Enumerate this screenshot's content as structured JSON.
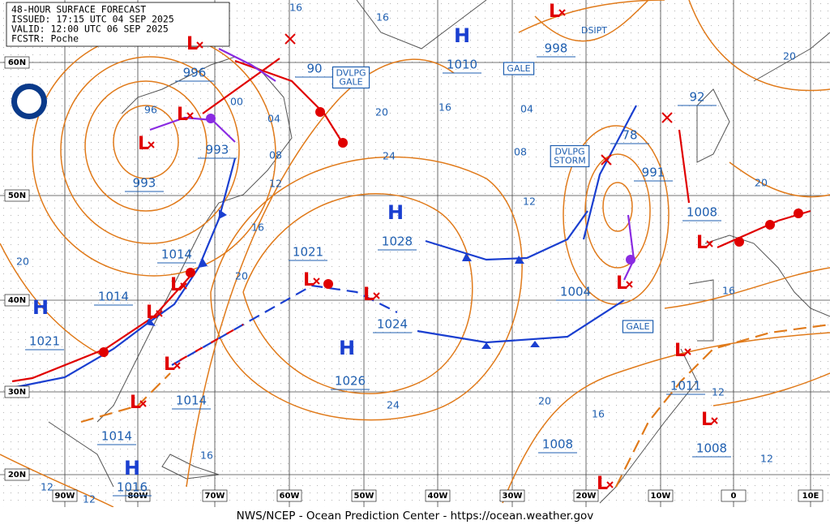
{
  "header": {
    "lines": [
      "48-HOUR SURFACE FORECAST",
      "ISSUED: 17:15 UTC 04 SEP 2025",
      "VALID: 12:00 UTC 06 SEP 2025",
      "FCSTR: Poche"
    ]
  },
  "footer": "NWS/NCEP - Ocean Prediction Center - https://ocean.weather.gov",
  "lat_labels": [
    "60N",
    "50N",
    "40N",
    "30N",
    "20N"
  ],
  "lon_labels": [
    "90W",
    "80W",
    "70W",
    "60W",
    "50W",
    "40W",
    "30W",
    "20W",
    "10W",
    "0",
    "10E"
  ],
  "high_symbol": "H",
  "low_symbol": "L",
  "pressures": [
    "996",
    "993",
    "993",
    "1014",
    "1014",
    "1021",
    "1021",
    "1028",
    "1024",
    "1026",
    "1014",
    "1014",
    "1016",
    "1010",
    "998",
    "90",
    "78",
    "991",
    "1008",
    "92",
    "1004",
    "1011",
    "1008",
    "1008"
  ],
  "warnings": [
    "DVLPG GALE",
    "GALE",
    "DVLPG STORM",
    "GALE",
    "DSIPT"
  ],
  "isobar_labels": [
    "16",
    "16",
    "16",
    "16",
    "16",
    "16",
    "16",
    "20",
    "20",
    "20",
    "20",
    "20",
    "20",
    "24",
    "24",
    "04",
    "04",
    "08",
    "08",
    "12",
    "12",
    "12",
    "12",
    "12",
    "12",
    "00",
    "96"
  ]
}
